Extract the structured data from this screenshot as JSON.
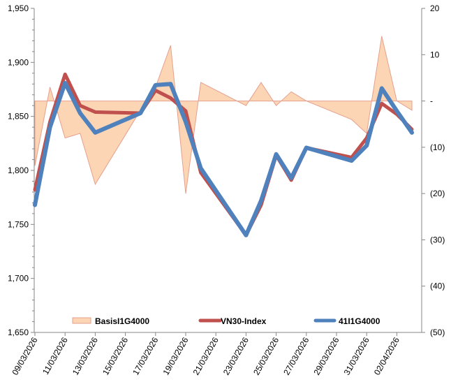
{
  "chart_data": {
    "type": "line",
    "title": "",
    "xlabel": "",
    "ylabel": "",
    "y2label": "",
    "grid": false,
    "legend_position": "bottom-inside",
    "ylim": [
      1650,
      1950
    ],
    "y2lim": [
      -50,
      20
    ],
    "y_ticks": [
      "1,650",
      "1,700",
      "1,750",
      "1,800",
      "1,850",
      "1,900",
      "1,950"
    ],
    "y_tick_values": [
      1650,
      1700,
      1750,
      1800,
      1850,
      1900,
      1950
    ],
    "y2_ticks": [
      "(50)",
      "(40)",
      "(30)",
      "(20)",
      "(10)",
      "-",
      "10",
      "20"
    ],
    "y2_tick_values": [
      -50,
      -40,
      -30,
      -20,
      -10,
      0,
      10,
      20
    ],
    "x_tick_labels": [
      "09/03/2026",
      "11/03/2026",
      "13/03/2026",
      "15/03/2026",
      "17/03/2026",
      "19/03/2026",
      "21/03/2026",
      "23/03/2026",
      "25/03/2026",
      "27/03/2026",
      "29/03/2026",
      "31/03/2026",
      "02/04/2026"
    ],
    "x_tick_days": [
      0,
      2,
      4,
      6,
      8,
      10,
      12,
      14,
      16,
      18,
      20,
      22,
      24
    ],
    "x_range_days": [
      0,
      25
    ],
    "x_days": [
      0,
      1,
      2,
      3,
      4,
      7,
      8,
      9,
      10,
      11,
      14,
      15,
      16,
      17,
      18,
      21,
      22,
      23,
      24,
      25
    ],
    "x": [
      "09/03/2026",
      "10/03/2026",
      "11/03/2026",
      "12/03/2026",
      "13/03/2026",
      "16/03/2026",
      "17/03/2026",
      "18/03/2026",
      "19/03/2026",
      "20/03/2026",
      "23/03/2026",
      "24/03/2026",
      "25/03/2026",
      "26/03/2026",
      "27/03/2026",
      "30/03/2026",
      "31/03/2026",
      "01/04/2026",
      "02/04/2026",
      "03/04/2026"
    ],
    "series": [
      {
        "name": "BasisI1G4000",
        "type": "area",
        "axis": "right",
        "color": "#fcd5b4",
        "stroke": "#e6a08e",
        "values": [
          -14,
          3,
          -8,
          -7,
          -18,
          -2,
          3,
          12,
          -20,
          4,
          -1,
          4,
          -1,
          2,
          0,
          -4,
          -7,
          14,
          0,
          -2
        ]
      },
      {
        "name": "VN30-Index",
        "type": "line",
        "axis": "left",
        "color": "#c0504d",
        "values": [
          1782,
          1845,
          1889,
          1860,
          1854,
          1853,
          1874,
          1867,
          1855,
          1798,
          1740,
          1768,
          1814,
          1791,
          1821,
          1812,
          1830,
          1862,
          1852,
          1838
        ]
      },
      {
        "name": "41I1G4000",
        "type": "line",
        "axis": "left",
        "color": "#4f81bd",
        "values": [
          1768,
          1840,
          1881,
          1853,
          1835,
          1853,
          1879,
          1880,
          1845,
          1802,
          1740,
          1772,
          1815,
          1793,
          1821,
          1809,
          1823,
          1876,
          1855,
          1835
        ]
      }
    ]
  }
}
